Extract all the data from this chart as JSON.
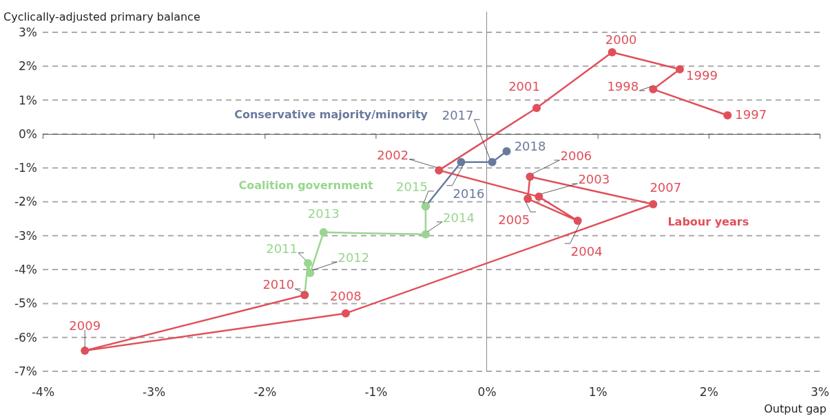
{
  "chart_data": {
    "type": "line",
    "xlabel": "Output gap",
    "ylabel": "Cyclically-adjusted primary balance",
    "xlim": [
      -4,
      3
    ],
    "xticks": [
      {
        "value": -4,
        "label": "-4%"
      },
      {
        "value": -3,
        "label": "-3%"
      },
      {
        "value": -2,
        "label": "-2%"
      },
      {
        "value": -1,
        "label": "-1%"
      },
      {
        "value": 0,
        "label": "0%"
      },
      {
        "value": 1,
        "label": "1%"
      },
      {
        "value": 2,
        "label": "2%"
      },
      {
        "value": 3,
        "label": "3%"
      }
    ],
    "ylim": [
      -7,
      3
    ],
    "yticks": [
      {
        "value": -7,
        "label": "-7%"
      },
      {
        "value": -6,
        "label": "-6%"
      },
      {
        "value": -5,
        "label": "-5%"
      },
      {
        "value": -4,
        "label": "-4%"
      },
      {
        "value": -3,
        "label": "-3%"
      },
      {
        "value": -2,
        "label": "-2%"
      },
      {
        "value": -1,
        "label": "-1%"
      },
      {
        "value": 0,
        "label": "0%"
      },
      {
        "value": 1,
        "label": "1%"
      },
      {
        "value": 2,
        "label": "2%"
      },
      {
        "value": 3,
        "label": "3%"
      }
    ],
    "grid": "y",
    "legend": false,
    "marker": "circle",
    "line_style": "solid",
    "ref_lines": [
      {
        "axis": "x",
        "value": 0,
        "color": "#888888"
      }
    ],
    "series": [
      {
        "name": "Labour years",
        "color": "#e0505a",
        "x": [
          2.17,
          1.5,
          1.74,
          1.13,
          0.45,
          -0.43,
          0.47,
          0.82,
          0.37,
          0.39,
          1.5,
          -1.27,
          -3.62,
          -1.64
        ],
        "values": [
          0.55,
          1.32,
          1.91,
          2.41,
          0.77,
          -1.07,
          -1.85,
          -2.56,
          -1.91,
          -1.26,
          -2.07,
          -5.29,
          -6.39,
          -4.75
        ]
      },
      {
        "name": "Coalition government",
        "color": "#99d68f",
        "x": [
          -1.64,
          -1.61,
          -1.59,
          -1.47,
          -0.55,
          -0.55
        ],
        "values": [
          -4.75,
          -3.81,
          -4.1,
          -2.9,
          -2.96,
          -2.13
        ]
      },
      {
        "name": "Conservative majority/minority",
        "color": "#6a7a9e",
        "x": [
          -0.55,
          -0.23,
          0.05,
          0.18
        ],
        "values": [
          -2.13,
          -0.83,
          -0.83,
          -0.51
        ]
      }
    ],
    "annotations": [
      {
        "text": "1997",
        "x": 2.17,
        "y": 0.55
      },
      {
        "text": "1998",
        "x": 1.5,
        "y": 1.32
      },
      {
        "text": "1999",
        "x": 1.74,
        "y": 1.91
      },
      {
        "text": "2000",
        "x": 1.13,
        "y": 2.41
      },
      {
        "text": "2001",
        "x": 0.45,
        "y": 0.77
      },
      {
        "text": "2002",
        "x": -0.43,
        "y": -1.07
      },
      {
        "text": "2003",
        "x": 0.47,
        "y": -1.85
      },
      {
        "text": "2004",
        "x": 0.82,
        "y": -2.56
      },
      {
        "text": "2005",
        "x": 0.37,
        "y": -1.91
      },
      {
        "text": "2006",
        "x": 0.39,
        "y": -1.26
      },
      {
        "text": "2007",
        "x": 1.5,
        "y": -2.07
      },
      {
        "text": "2008",
        "x": -1.27,
        "y": -5.29
      },
      {
        "text": "2009",
        "x": -3.62,
        "y": -6.39
      },
      {
        "text": "2010",
        "x": -1.64,
        "y": -4.75
      },
      {
        "text": "2011",
        "x": -1.61,
        "y": -3.81
      },
      {
        "text": "2012",
        "x": -1.59,
        "y": -4.1
      },
      {
        "text": "2013",
        "x": -1.47,
        "y": -2.9
      },
      {
        "text": "2014",
        "x": -0.55,
        "y": -2.96
      },
      {
        "text": "2015",
        "x": -0.55,
        "y": -2.13
      },
      {
        "text": "2016",
        "x": -0.23,
        "y": -0.83
      },
      {
        "text": "2017",
        "x": 0.05,
        "y": -0.83
      },
      {
        "text": "2018",
        "x": 0.18,
        "y": -0.51
      }
    ]
  }
}
